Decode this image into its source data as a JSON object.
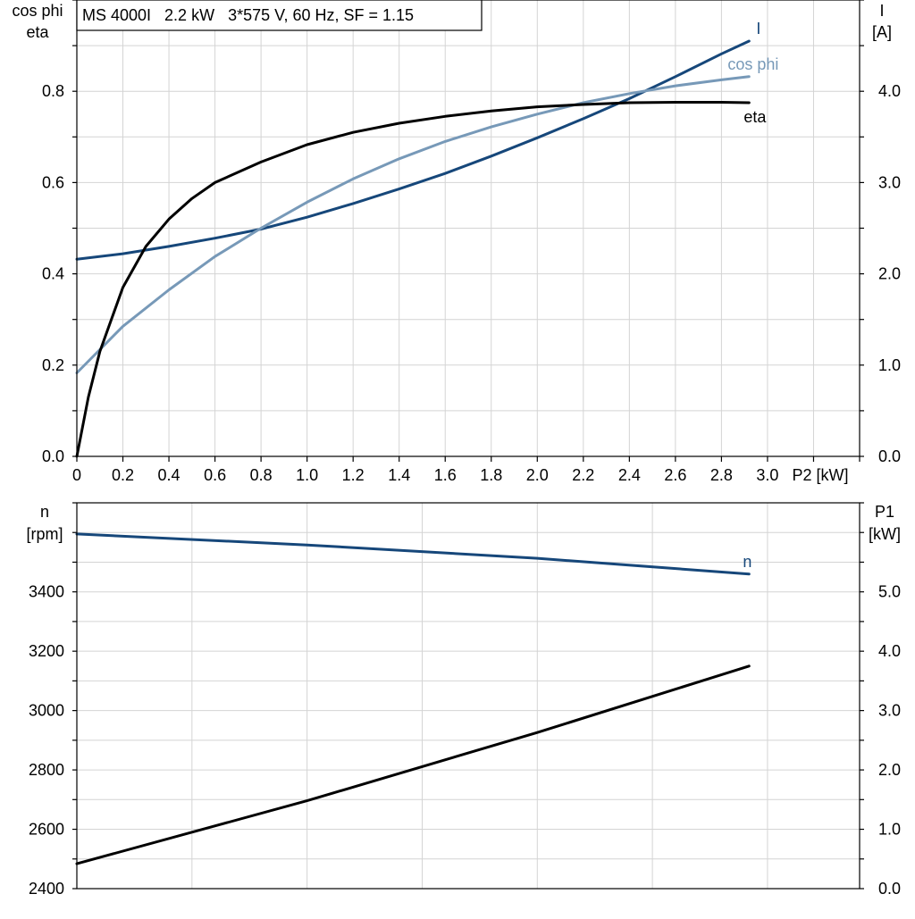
{
  "chart_data": [
    {
      "type": "line",
      "title": "MS 4000I   2.2 kW   3*575 V, 60 Hz, SF = 1.15",
      "xlabel": "P2 [kW]",
      "xlim": [
        0,
        3.4
      ],
      "x_ticks": [
        "0",
        "0.2",
        "0.4",
        "0.6",
        "0.8",
        "1.0",
        "1.2",
        "1.4",
        "1.6",
        "1.8",
        "2.0",
        "2.2",
        "2.4",
        "2.6",
        "2.8",
        "3.0"
      ],
      "ylabel_left": "cos phi\neta",
      "ylim_left": [
        0,
        1.0
      ],
      "y_ticks_left": [
        "0.0",
        "0.2",
        "0.4",
        "0.6",
        "0.8"
      ],
      "ylabel_right": "I\n[A]",
      "ylim_right": [
        0,
        5.0
      ],
      "y_ticks_right": [
        "0.0",
        "1.0",
        "2.0",
        "3.0",
        "4.0"
      ],
      "grid": true,
      "series": [
        {
          "name": "I",
          "axis": "right",
          "color": "#16477a",
          "x": [
            0,
            0.2,
            0.4,
            0.6,
            0.8,
            1.0,
            1.2,
            1.4,
            1.6,
            1.8,
            2.0,
            2.2,
            2.4,
            2.6,
            2.8,
            2.92
          ],
          "y": [
            2.16,
            2.22,
            2.3,
            2.39,
            2.49,
            2.62,
            2.77,
            2.93,
            3.1,
            3.29,
            3.49,
            3.7,
            3.92,
            4.16,
            4.41,
            4.55
          ]
        },
        {
          "name": "cos phi",
          "axis": "left",
          "color": "#7799b8",
          "x": [
            0,
            0.2,
            0.4,
            0.6,
            0.8,
            1.0,
            1.2,
            1.4,
            1.6,
            1.8,
            2.0,
            2.2,
            2.4,
            2.6,
            2.8,
            2.92
          ],
          "y": [
            0.183,
            0.285,
            0.365,
            0.438,
            0.5,
            0.557,
            0.608,
            0.652,
            0.69,
            0.722,
            0.75,
            0.775,
            0.795,
            0.812,
            0.825,
            0.832
          ]
        },
        {
          "name": "eta",
          "axis": "left",
          "color": "#000000",
          "x": [
            0,
            0.05,
            0.1,
            0.2,
            0.3,
            0.4,
            0.5,
            0.6,
            0.8,
            1.0,
            1.2,
            1.4,
            1.6,
            1.8,
            2.0,
            2.2,
            2.4,
            2.6,
            2.8,
            2.92
          ],
          "y": [
            0,
            0.13,
            0.23,
            0.37,
            0.46,
            0.52,
            0.565,
            0.6,
            0.645,
            0.683,
            0.71,
            0.73,
            0.745,
            0.757,
            0.766,
            0.771,
            0.775,
            0.776,
            0.776,
            0.775
          ]
        }
      ]
    },
    {
      "type": "line",
      "xlim": [
        0,
        3.4
      ],
      "ylabel_left": "n\n[rpm]",
      "ylim_left": [
        2400,
        3700
      ],
      "y_ticks_left": [
        "2400",
        "2600",
        "2800",
        "3000",
        "3200",
        "3400"
      ],
      "ylabel_right": "P1\n[kW]",
      "ylim_right": [
        0,
        6.5
      ],
      "y_ticks_right": [
        "0.0",
        "1.0",
        "2.0",
        "3.0",
        "4.0",
        "5.0"
      ],
      "grid": true,
      "series": [
        {
          "name": "n",
          "axis": "left",
          "color": "#16477a",
          "x": [
            0,
            1.0,
            2.0,
            2.92
          ],
          "y": [
            3595,
            3558,
            3513,
            3460
          ]
        },
        {
          "axis": "right",
          "color": "#000000",
          "x": [
            0,
            1.0,
            2.0,
            2.92
          ],
          "y": [
            0.42,
            1.48,
            2.63,
            3.75
          ]
        }
      ]
    }
  ]
}
